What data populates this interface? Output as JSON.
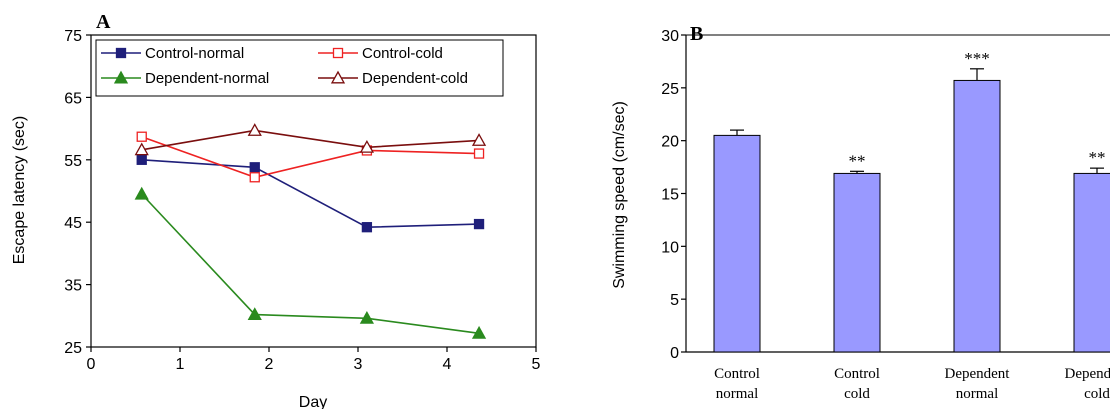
{
  "chart_data": [
    {
      "type": "line",
      "panel_label": "A",
      "title": "",
      "xlabel": "Day",
      "ylabel": "Escape latency (sec)",
      "xlim": [
        0,
        5
      ],
      "ylim": [
        25,
        75
      ],
      "x_ticks": [
        "0",
        "1",
        "2",
        "3",
        "4",
        "5"
      ],
      "y_ticks": [
        "25",
        "35",
        "45",
        "55",
        "65",
        "75"
      ],
      "grid": false,
      "legend_position": "top",
      "x": [
        0.57,
        1.84,
        3.1,
        4.36
      ],
      "series": [
        {
          "name": "Control-normal",
          "values": [
            55.0,
            53.8,
            44.2,
            44.7
          ],
          "color": "#1f1f7a",
          "marker": "square-filled"
        },
        {
          "name": "Control-cold",
          "values": [
            58.7,
            52.2,
            56.5,
            56.0
          ],
          "color": "#ee2222",
          "marker": "square-open"
        },
        {
          "name": "Dependent-normal",
          "values": [
            49.5,
            30.2,
            29.6,
            27.2
          ],
          "color": "#2a8a1e",
          "marker": "triangle-filled"
        },
        {
          "name": "Dependent-cold",
          "values": [
            56.6,
            59.7,
            57.0,
            58.1
          ],
          "color": "#7a0e0e",
          "marker": "triangle-open"
        }
      ]
    },
    {
      "type": "bar",
      "panel_label": "B",
      "title": "",
      "xlabel": "",
      "ylabel": "Swimming speed (cm/sec)",
      "ylim": [
        0,
        30
      ],
      "y_ticks": [
        "0",
        "5",
        "10",
        "15",
        "20",
        "25",
        "30"
      ],
      "grid": false,
      "bar_color": "#9999ff",
      "categories": [
        {
          "line1": "Control",
          "line2": "normal"
        },
        {
          "line1": "Control",
          "line2": "cold"
        },
        {
          "line1": "Dependent",
          "line2": "normal"
        },
        {
          "line1": "Dependent",
          "line2": "cold"
        }
      ],
      "values": [
        20.5,
        16.9,
        25.7,
        16.9
      ],
      "errors": [
        0.5,
        0.2,
        1.1,
        0.5
      ],
      "significance": [
        "",
        "**",
        "***",
        "**"
      ]
    }
  ]
}
